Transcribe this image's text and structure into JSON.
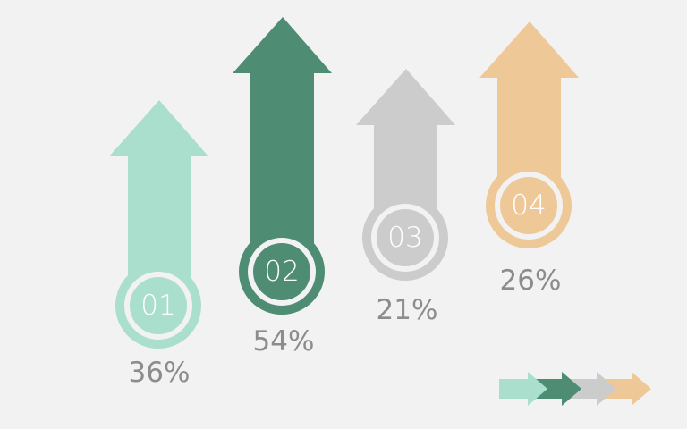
{
  "items": [
    {
      "number": "01",
      "percent": "36%",
      "value": 36,
      "color": "#a9dfcc"
    },
    {
      "number": "02",
      "percent": "54%",
      "value": 54,
      "color": "#4e8c74"
    },
    {
      "number": "03",
      "percent": "21%",
      "value": 21,
      "color": "#cccccc"
    },
    {
      "number": "04",
      "percent": "26%",
      "value": 26,
      "color": "#efc897"
    }
  ],
  "background": "#f2f2f2",
  "inner_ring_color": "#f2f2f2",
  "percent_text_color": "#8c8c8c"
}
